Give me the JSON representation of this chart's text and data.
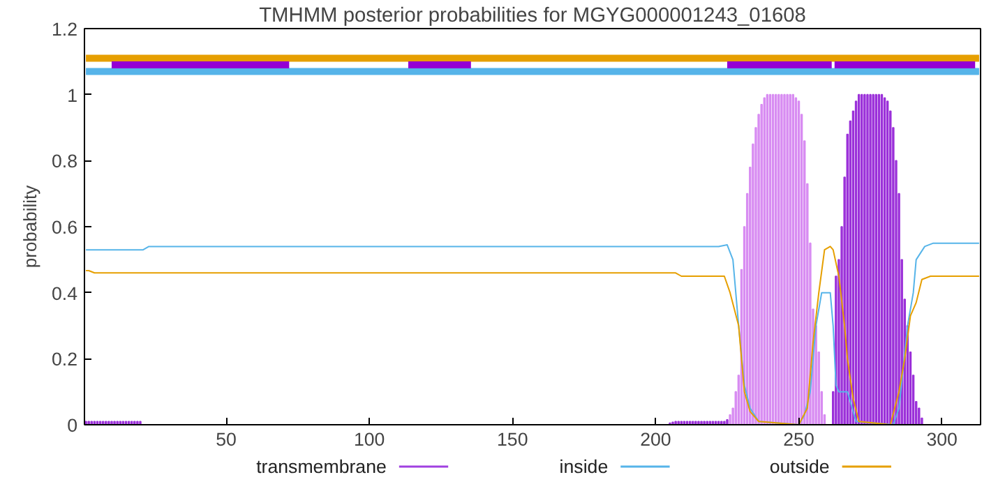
{
  "chart_data": {
    "type": "line",
    "title": "TMHMM posterior probabilities for MGYG000001243_01608",
    "ylabel": "probability",
    "xlim": [
      0.5,
      313.5
    ],
    "ylim": [
      0,
      1.2
    ],
    "xticks": [
      50,
      100,
      150,
      200,
      250,
      300
    ],
    "yticks": [
      0,
      0.2,
      0.4,
      0.6,
      0.8,
      1,
      1.2
    ],
    "grid": false,
    "legend": "bottom",
    "series": [
      {
        "name": "transmembrane",
        "type": "bar",
        "color": "#a040e0",
        "x": [
          1,
          2,
          3,
          4,
          5,
          6,
          7,
          8,
          9,
          10,
          11,
          12,
          13,
          14,
          15,
          16,
          17,
          18,
          19,
          20,
          205,
          206,
          207,
          208,
          209,
          210,
          211,
          212,
          213,
          214,
          215,
          216,
          217,
          218,
          219,
          220,
          221,
          222,
          223,
          224,
          225,
          226,
          227,
          228,
          229,
          230,
          231,
          232,
          233,
          234,
          235,
          236,
          237,
          238,
          239,
          240,
          241,
          242,
          243,
          244,
          245,
          246,
          247,
          248,
          249,
          250,
          251,
          252,
          253,
          254,
          255,
          256,
          257,
          258,
          259,
          262,
          263,
          264,
          265,
          266,
          267,
          268,
          269,
          270,
          271,
          272,
          273,
          274,
          275,
          276,
          277,
          278,
          279,
          280,
          281,
          282,
          283,
          284,
          285,
          286,
          287,
          288,
          289,
          290,
          291,
          292,
          293
        ],
        "values": [
          0.01,
          0.01,
          0.01,
          0.01,
          0.01,
          0.01,
          0.01,
          0.01,
          0.01,
          0.01,
          0.01,
          0.01,
          0.01,
          0.01,
          0.01,
          0.01,
          0.01,
          0.01,
          0.01,
          0.01,
          0.005,
          0.008,
          0.01,
          0.01,
          0.01,
          0.01,
          0.01,
          0.01,
          0.01,
          0.01,
          0.01,
          0.01,
          0.01,
          0.01,
          0.01,
          0.01,
          0.01,
          0.01,
          0.01,
          0.01,
          0.015,
          0.03,
          0.05,
          0.1,
          0.15,
          0.47,
          0.6,
          0.7,
          0.78,
          0.85,
          0.9,
          0.94,
          0.97,
          0.99,
          1,
          1,
          1,
          1,
          1,
          1,
          1,
          1,
          1,
          1,
          0.99,
          0.98,
          0.94,
          0.86,
          0.73,
          0.55,
          0.35,
          0.3,
          0.22,
          0.1,
          0.03,
          0.1,
          0.45,
          0.5,
          0.6,
          0.75,
          0.88,
          0.92,
          0.95,
          0.98,
          1,
          1,
          1,
          1,
          1,
          1,
          1,
          1,
          1,
          0.99,
          0.98,
          0.95,
          0.9,
          0.8,
          0.7,
          0.5,
          0.38,
          0.3,
          0.22,
          0.15,
          0.07,
          0.05,
          0.02
        ],
        "colors": [
          "#9b30d9",
          "#9b30d9",
          "#9b30d9",
          "#9b30d9",
          "#9b30d9",
          "#9b30d9",
          "#9b30d9",
          "#9b30d9",
          "#9b30d9",
          "#9b30d9",
          "#9b30d9",
          "#9b30d9",
          "#9b30d9",
          "#9b30d9",
          "#9b30d9",
          "#9b30d9",
          "#9b30d9",
          "#9b30d9",
          "#9b30d9",
          "#9b30d9",
          "#9b30d9",
          "#9b30d9",
          "#9b30d9",
          "#9b30d9",
          "#9b30d9",
          "#9b30d9",
          "#9b30d9",
          "#9b30d9",
          "#9b30d9",
          "#9b30d9",
          "#9b30d9",
          "#9b30d9",
          "#9b30d9",
          "#9b30d9",
          "#9b30d9",
          "#9b30d9",
          "#9b30d9",
          "#9b30d9",
          "#9b30d9",
          "#9b30d9",
          "#9b30d9",
          "#d88cf2",
          "#d88cf2",
          "#d88cf2",
          "#d88cf2",
          "#d88cf2",
          "#d88cf2",
          "#d88cf2",
          "#d88cf2",
          "#d88cf2",
          "#d88cf2",
          "#d88cf2",
          "#d88cf2",
          "#d88cf2",
          "#d88cf2",
          "#d88cf2",
          "#d88cf2",
          "#d88cf2",
          "#d88cf2",
          "#d88cf2",
          "#d88cf2",
          "#d88cf2",
          "#d88cf2",
          "#d88cf2",
          "#d88cf2",
          "#d88cf2",
          "#d88cf2",
          "#d88cf2",
          "#d88cf2",
          "#d88cf2",
          "#d88cf2",
          "#d88cf2",
          "#d88cf2",
          "#d88cf2",
          "#d88cf2",
          "#9b30d9",
          "#9b30d9",
          "#9b30d9",
          "#9b30d9",
          "#9b30d9",
          "#9b30d9",
          "#9b30d9",
          "#9b30d9",
          "#9b30d9",
          "#9b30d9",
          "#9b30d9",
          "#9b30d9",
          "#9b30d9",
          "#9b30d9",
          "#9b30d9",
          "#9b30d9",
          "#9b30d9",
          "#9b30d9",
          "#9b30d9",
          "#9b30d9",
          "#9b30d9",
          "#9b30d9",
          "#9b30d9",
          "#9b30d9",
          "#9b30d9",
          "#9b30d9",
          "#9b30d9",
          "#9b30d9",
          "#9b30d9",
          "#9b30d9",
          "#9b30d9",
          "#9b30d9"
        ]
      },
      {
        "name": "inside",
        "color": "#56b4e9",
        "x": [
          1,
          21,
          23,
          222,
          225,
          227,
          229,
          231,
          233,
          236,
          250,
          252,
          254,
          256,
          258,
          261,
          262,
          263,
          264,
          267,
          270,
          283,
          285,
          288,
          290,
          291,
          294,
          297,
          313
        ],
        "values": [
          0.53,
          0.53,
          0.54,
          0.54,
          0.545,
          0.5,
          0.3,
          0.12,
          0.05,
          0.01,
          0,
          0.03,
          0.1,
          0.3,
          0.4,
          0.4,
          0.3,
          0.12,
          0.1,
          0.1,
          0.01,
          0,
          0.05,
          0.3,
          0.4,
          0.5,
          0.54,
          0.55,
          0.55
        ]
      },
      {
        "name": "outside",
        "color": "#e69f00",
        "x": [
          1,
          2,
          4,
          207,
          209,
          224,
          226,
          229,
          231,
          233,
          236,
          250,
          253,
          255,
          257,
          259,
          261,
          262,
          264,
          266,
          267,
          269,
          271,
          282,
          285,
          287,
          289,
          291,
          293,
          296,
          313
        ],
        "values": [
          0.467,
          0.467,
          0.46,
          0.46,
          0.45,
          0.45,
          0.4,
          0.3,
          0.1,
          0.04,
          0.01,
          0,
          0.05,
          0.25,
          0.4,
          0.53,
          0.54,
          0.53,
          0.45,
          0.3,
          0.2,
          0.08,
          0.01,
          0,
          0.1,
          0.2,
          0.33,
          0.37,
          0.44,
          0.45,
          0.45
        ]
      },
      {
        "type": "line",
        "color": "#e69f00",
        "x": [
          1,
          313
        ],
        "values": [
          1.11,
          1.11
        ]
      },
      {
        "type": "line",
        "color": "#56b4e9",
        "x": [
          1,
          313
        ],
        "values": [
          1.07,
          1.07
        ]
      },
      {
        "type": "line",
        "color": "#9400d3",
        "x": [
          10,
          72,
          null,
          113.6,
          135.5,
          null,
          225,
          261.5,
          null,
          262.5,
          311.6
        ],
        "values": [
          1.09,
          1.09,
          null,
          1.09,
          1.09,
          null,
          1.09,
          1.09,
          null,
          1.09,
          1.09
        ]
      }
    ]
  }
}
